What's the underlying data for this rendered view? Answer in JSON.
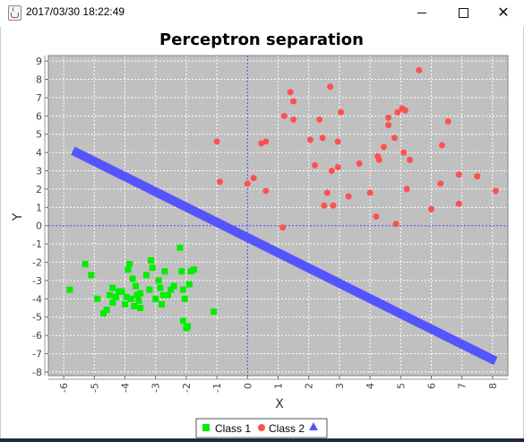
{
  "window": {
    "title": "2017/03/30 18:22:49",
    "minimize_icon": "minimize-icon",
    "maximize_icon": "maximize-icon",
    "close_icon": "close-icon",
    "app_icon": "java-icon"
  },
  "chart_data": {
    "type": "scatter",
    "title": "Perceptron separation",
    "xlabel": "X",
    "ylabel": "Y",
    "xlim": [
      -6.5,
      8.5
    ],
    "ylim": [
      -8.2,
      9.3
    ],
    "xticks": [
      -6,
      -5,
      -4,
      -3,
      -2,
      -1,
      0,
      1,
      2,
      3,
      4,
      5,
      6,
      7,
      8
    ],
    "yticks": [
      -8,
      -7,
      -6,
      -5,
      -4,
      -3,
      -2,
      -1,
      0,
      1,
      2,
      3,
      4,
      5,
      6,
      7,
      8,
      9
    ],
    "grid": true,
    "legend_placement": "bottom-center",
    "colors": {
      "plot_background": "#c0c0c0",
      "class1": "#00ee00",
      "class2": "#ff5050",
      "separator": "#5555ff",
      "grid": "#ffffff",
      "zero_lines": "#4a4aff"
    },
    "series": [
      {
        "name": "Class 1",
        "marker": "square",
        "color": "#00ee00",
        "points": [
          [
            -5.8,
            -3.5
          ],
          [
            -5.3,
            -2.1
          ],
          [
            -5.1,
            -2.7
          ],
          [
            -4.9,
            -4.0
          ],
          [
            -4.7,
            -4.8
          ],
          [
            -4.6,
            -4.6
          ],
          [
            -4.5,
            -3.8
          ],
          [
            -4.4,
            -3.4
          ],
          [
            -4.4,
            -4.2
          ],
          [
            -4.3,
            -3.9
          ],
          [
            -4.2,
            -3.6
          ],
          [
            -4.1,
            -3.6
          ],
          [
            -4.0,
            -4.3
          ],
          [
            -3.95,
            -3.9
          ],
          [
            -3.9,
            -2.4
          ],
          [
            -3.85,
            -2.1
          ],
          [
            -3.8,
            -4.0
          ],
          [
            -3.75,
            -2.9
          ],
          [
            -3.7,
            -4.4
          ],
          [
            -3.65,
            -3.3
          ],
          [
            -3.6,
            -3.8
          ],
          [
            -3.55,
            -4.1
          ],
          [
            -3.5,
            -4.5
          ],
          [
            -3.5,
            -3.7
          ],
          [
            -3.3,
            -2.7
          ],
          [
            -3.2,
            -3.5
          ],
          [
            -3.15,
            -1.9
          ],
          [
            -3.1,
            -2.3
          ],
          [
            -3.0,
            -4.0
          ],
          [
            -2.9,
            -3.0
          ],
          [
            -2.85,
            -3.4
          ],
          [
            -2.8,
            -4.3
          ],
          [
            -2.75,
            -3.8
          ],
          [
            -2.7,
            -2.5
          ],
          [
            -2.6,
            -3.8
          ],
          [
            -2.5,
            -3.5
          ],
          [
            -2.4,
            -3.3
          ],
          [
            -2.2,
            -1.2
          ],
          [
            -2.15,
            -2.5
          ],
          [
            -2.1,
            -3.5
          ],
          [
            -2.1,
            -5.2
          ],
          [
            -2.05,
            -4.0
          ],
          [
            -2.0,
            -5.6
          ],
          [
            -1.95,
            -5.5
          ],
          [
            -1.9,
            -3.2
          ],
          [
            -1.85,
            -2.5
          ],
          [
            -1.75,
            -2.4
          ],
          [
            -1.1,
            -4.7
          ]
        ]
      },
      {
        "name": "Class 2",
        "marker": "circle",
        "color": "#ff5050",
        "points": [
          [
            -1.0,
            4.6
          ],
          [
            -0.9,
            2.4
          ],
          [
            0.0,
            2.3
          ],
          [
            0.2,
            2.6
          ],
          [
            0.45,
            4.5
          ],
          [
            0.6,
            4.6
          ],
          [
            0.6,
            1.9
          ],
          [
            1.15,
            -0.1
          ],
          [
            1.2,
            6.0
          ],
          [
            1.4,
            7.3
          ],
          [
            1.5,
            6.8
          ],
          [
            1.5,
            5.8
          ],
          [
            2.05,
            4.7
          ],
          [
            2.2,
            3.3
          ],
          [
            2.35,
            5.8
          ],
          [
            2.45,
            4.8
          ],
          [
            2.5,
            1.1
          ],
          [
            2.6,
            1.8
          ],
          [
            2.7,
            7.6
          ],
          [
            2.75,
            3.0
          ],
          [
            2.8,
            1.1
          ],
          [
            2.95,
            3.2
          ],
          [
            2.95,
            4.6
          ],
          [
            3.05,
            6.2
          ],
          [
            3.3,
            1.6
          ],
          [
            3.65,
            3.4
          ],
          [
            4.0,
            1.8
          ],
          [
            4.2,
            0.5
          ],
          [
            4.25,
            3.8
          ],
          [
            4.3,
            3.6
          ],
          [
            4.45,
            4.3
          ],
          [
            4.6,
            5.5
          ],
          [
            4.6,
            5.9
          ],
          [
            4.85,
            0.1
          ],
          [
            4.8,
            4.8
          ],
          [
            4.9,
            6.2
          ],
          [
            5.05,
            6.4
          ],
          [
            5.1,
            4.0
          ],
          [
            5.15,
            6.3
          ],
          [
            5.2,
            2.0
          ],
          [
            5.3,
            3.6
          ],
          [
            5.6,
            8.5
          ],
          [
            6.0,
            0.9
          ],
          [
            6.3,
            2.3
          ],
          [
            6.35,
            4.4
          ],
          [
            6.55,
            5.7
          ],
          [
            6.9,
            2.8
          ],
          [
            6.9,
            1.2
          ],
          [
            7.5,
            2.7
          ],
          [
            8.1,
            1.9
          ]
        ]
      },
      {
        "name": "",
        "marker": "line",
        "color": "#5555ff",
        "points": [
          [
            -5.7,
            4.1
          ],
          [
            8.1,
            -7.4
          ]
        ]
      }
    ]
  }
}
